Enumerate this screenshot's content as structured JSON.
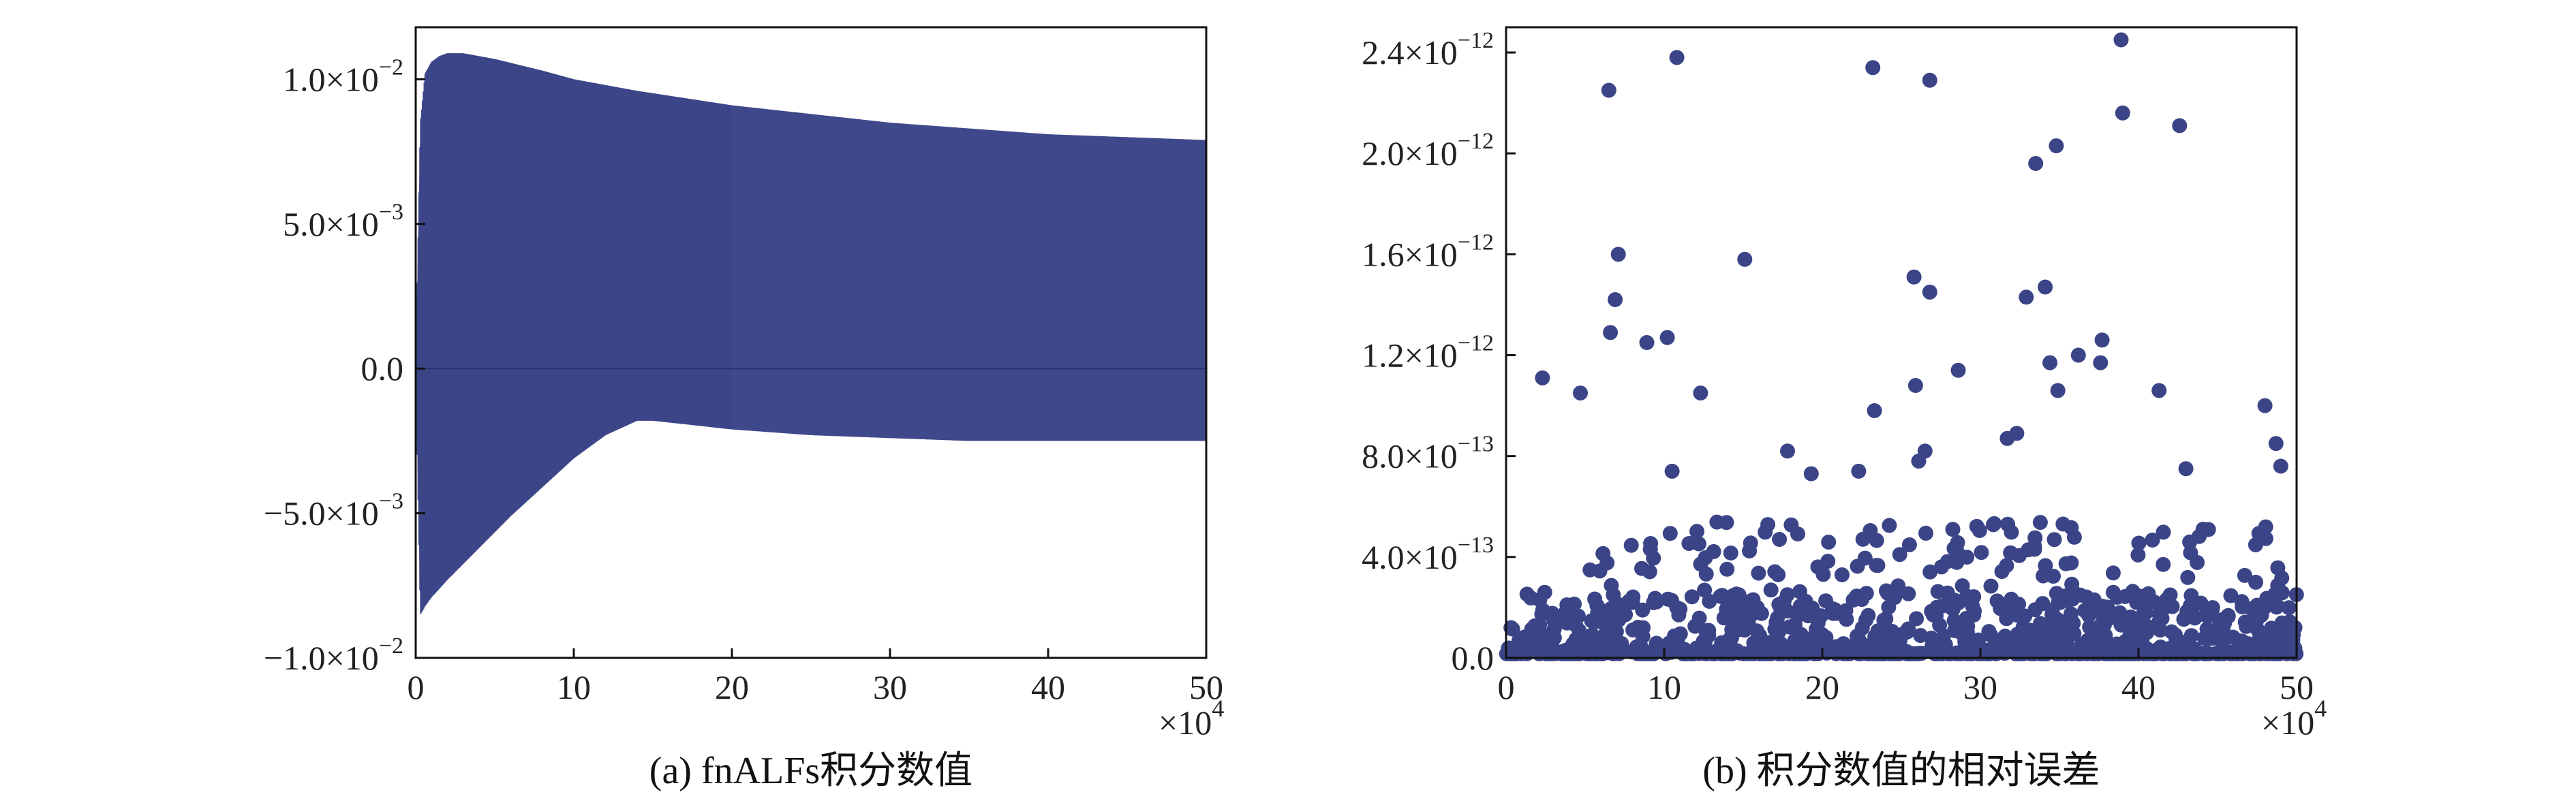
{
  "chart_data": [
    {
      "type": "area",
      "caption": "(a) fnALFs积分数值",
      "title": "",
      "xlabel": "",
      "ylabel": "",
      "x_multiplier": "×10^4",
      "xlim": [
        0,
        50
      ],
      "ylim": [
        -0.01,
        0.0118
      ],
      "xticks": [
        0,
        10,
        20,
        30,
        40,
        50
      ],
      "yticks": [
        {
          "value": -0.01,
          "mantissa": "−1.0",
          "exp": "−2"
        },
        {
          "value": -0.005,
          "mantissa": "−5.0",
          "exp": "−3"
        },
        {
          "value": 0.0,
          "mantissa": "0.0",
          "exp": ""
        },
        {
          "value": 0.005,
          "mantissa": "5.0",
          "exp": "−3"
        },
        {
          "value": 0.01,
          "mantissa": "1.0",
          "exp": "−2"
        }
      ],
      "color": "#3b4487",
      "upper_envelope": {
        "x": [
          0,
          0.3,
          0.6,
          1,
          1.5,
          2,
          3,
          5,
          8,
          10,
          14,
          20,
          25,
          30,
          35,
          40,
          45,
          50
        ],
        "y": [
          0.0,
          0.0085,
          0.0102,
          0.0106,
          0.0108,
          0.0109,
          0.0109,
          0.0107,
          0.0103,
          0.01,
          0.0096,
          0.0091,
          0.0088,
          0.0085,
          0.0083,
          0.0081,
          0.008,
          0.0079
        ]
      },
      "lower_envelope": {
        "x": [
          0,
          0.3,
          0.6,
          1,
          2,
          4,
          6,
          8,
          10,
          12,
          14,
          15,
          20,
          25,
          30,
          35,
          40,
          45,
          50
        ],
        "y": [
          0.0,
          -0.0085,
          -0.0082,
          -0.0079,
          -0.0073,
          -0.0062,
          -0.0051,
          -0.0041,
          -0.0031,
          -0.0023,
          -0.0018,
          -0.0018,
          -0.0021,
          -0.0023,
          -0.0024,
          -0.0025,
          -0.0025,
          -0.0025,
          -0.0025
        ]
      }
    },
    {
      "type": "scatter",
      "caption": "(b) 积分数值的相对误差",
      "title": "",
      "xlabel": "",
      "ylabel": "",
      "x_multiplier": "×10^4",
      "xlim": [
        0,
        50
      ],
      "ylim": [
        0,
        2.5e-12
      ],
      "xticks": [
        0,
        10,
        20,
        30,
        40,
        50
      ],
      "yticks": [
        {
          "value": 0.0,
          "mantissa": "0.0",
          "exp": ""
        },
        {
          "value": 4e-13,
          "mantissa": "4.0",
          "exp": "−13"
        },
        {
          "value": 8e-13,
          "mantissa": "8.0",
          "exp": "−13"
        },
        {
          "value": 1.2e-12,
          "mantissa": "1.2",
          "exp": "−12"
        },
        {
          "value": 1.6e-12,
          "mantissa": "1.6",
          "exp": "−12"
        },
        {
          "value": 2e-12,
          "mantissa": "2.0",
          "exp": "−12"
        },
        {
          "value": 2.4e-12,
          "mantissa": "2.4",
          "exp": "−12"
        }
      ],
      "color": "#3b4487",
      "outliers": [
        [
          2.3,
          1.11e-12
        ],
        [
          4.7,
          1.05e-12
        ],
        [
          6.5,
          2.25e-12
        ],
        [
          6.6,
          1.29e-12
        ],
        [
          6.9,
          1.42e-12
        ],
        [
          7.1,
          1.6e-12
        ],
        [
          8.9,
          1.25e-12
        ],
        [
          10.2,
          1.27e-12
        ],
        [
          10.8,
          2.38e-12
        ],
        [
          12.3,
          1.05e-12
        ],
        [
          15.1,
          1.58e-12
        ],
        [
          23.2,
          2.34e-12
        ],
        [
          23.3,
          9.8e-13
        ],
        [
          25.8,
          1.51e-12
        ],
        [
          25.9,
          1.08e-12
        ],
        [
          26.8,
          2.29e-12
        ],
        [
          26.8,
          1.45e-12
        ],
        [
          28.6,
          1.14e-12
        ],
        [
          32.3,
          8.9e-13
        ],
        [
          32.9,
          1.43e-12
        ],
        [
          33.5,
          1.96e-12
        ],
        [
          34.1,
          1.47e-12
        ],
        [
          34.4,
          1.17e-12
        ],
        [
          34.8,
          2.03e-12
        ],
        [
          34.9,
          1.06e-12
        ],
        [
          36.2,
          1.2e-12
        ],
        [
          37.6,
          1.17e-12
        ],
        [
          37.7,
          1.26e-12
        ],
        [
          38.9,
          2.45e-12
        ],
        [
          39.0,
          2.16e-12
        ],
        [
          41.3,
          1.06e-12
        ],
        [
          42.6,
          2.11e-12
        ],
        [
          48.0,
          1e-12
        ],
        [
          48.7,
          8.5e-13
        ],
        [
          49.0,
          7.6e-13
        ],
        [
          43.0,
          7.5e-13
        ],
        [
          17.8,
          8.2e-13
        ],
        [
          26.1,
          7.8e-13
        ],
        [
          26.5,
          8.2e-13
        ],
        [
          31.7,
          8.7e-13
        ],
        [
          10.5,
          7.4e-13
        ],
        [
          22.3,
          7.4e-13
        ],
        [
          19.3,
          7.3e-13
        ]
      ]
    }
  ]
}
